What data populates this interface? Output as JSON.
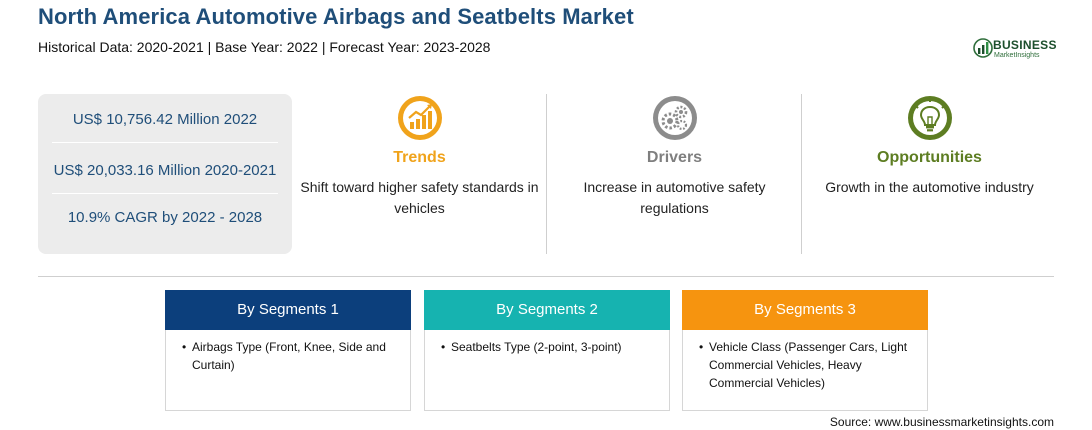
{
  "header": {
    "title": "North America Automotive Airbags and Seatbelts Market",
    "subtitle": "Historical Data: 2020-2021 | Base Year: 2022 | Forecast Year: 2023-2028"
  },
  "logo": {
    "name": "BUSINESS",
    "tagline": "MarketInsights",
    "icon": "logo-mark"
  },
  "stats": [
    "US$ 10,756.42 Million 2022",
    "US$ 20,033.16 Million 2020-2021",
    "10.9% CAGR by 2022 - 2028"
  ],
  "cards": [
    {
      "title": "Trends",
      "text": "Shift toward higher safety standards in vehicles",
      "icon": "trend-chart-icon",
      "color": "#f0a31b"
    },
    {
      "title": "Drivers",
      "text": "Increase in automotive safety regulations",
      "icon": "gears-icon",
      "color": "#7f7f7f"
    },
    {
      "title": "Opportunities",
      "text": "Growth in the automotive industry",
      "icon": "lightbulb-icon",
      "color": "#5d7d22"
    }
  ],
  "segments": [
    {
      "title": "By Segments 1",
      "item": "Airbags Type (Front, Knee, Side and Curtain)",
      "color": "#0c3f7c"
    },
    {
      "title": "By Segments 2",
      "item": "Seatbelts Type (2-point, 3-point)",
      "color": "#16b3b0"
    },
    {
      "title": "By Segments 3",
      "item": "Vehicle Class (Passenger Cars, Light Commercial Vehicles, Heavy Commercial Vehicles)",
      "color": "#f6940f"
    }
  ],
  "bullet": "•",
  "source": "Source: www.businessmarketinsights.com"
}
